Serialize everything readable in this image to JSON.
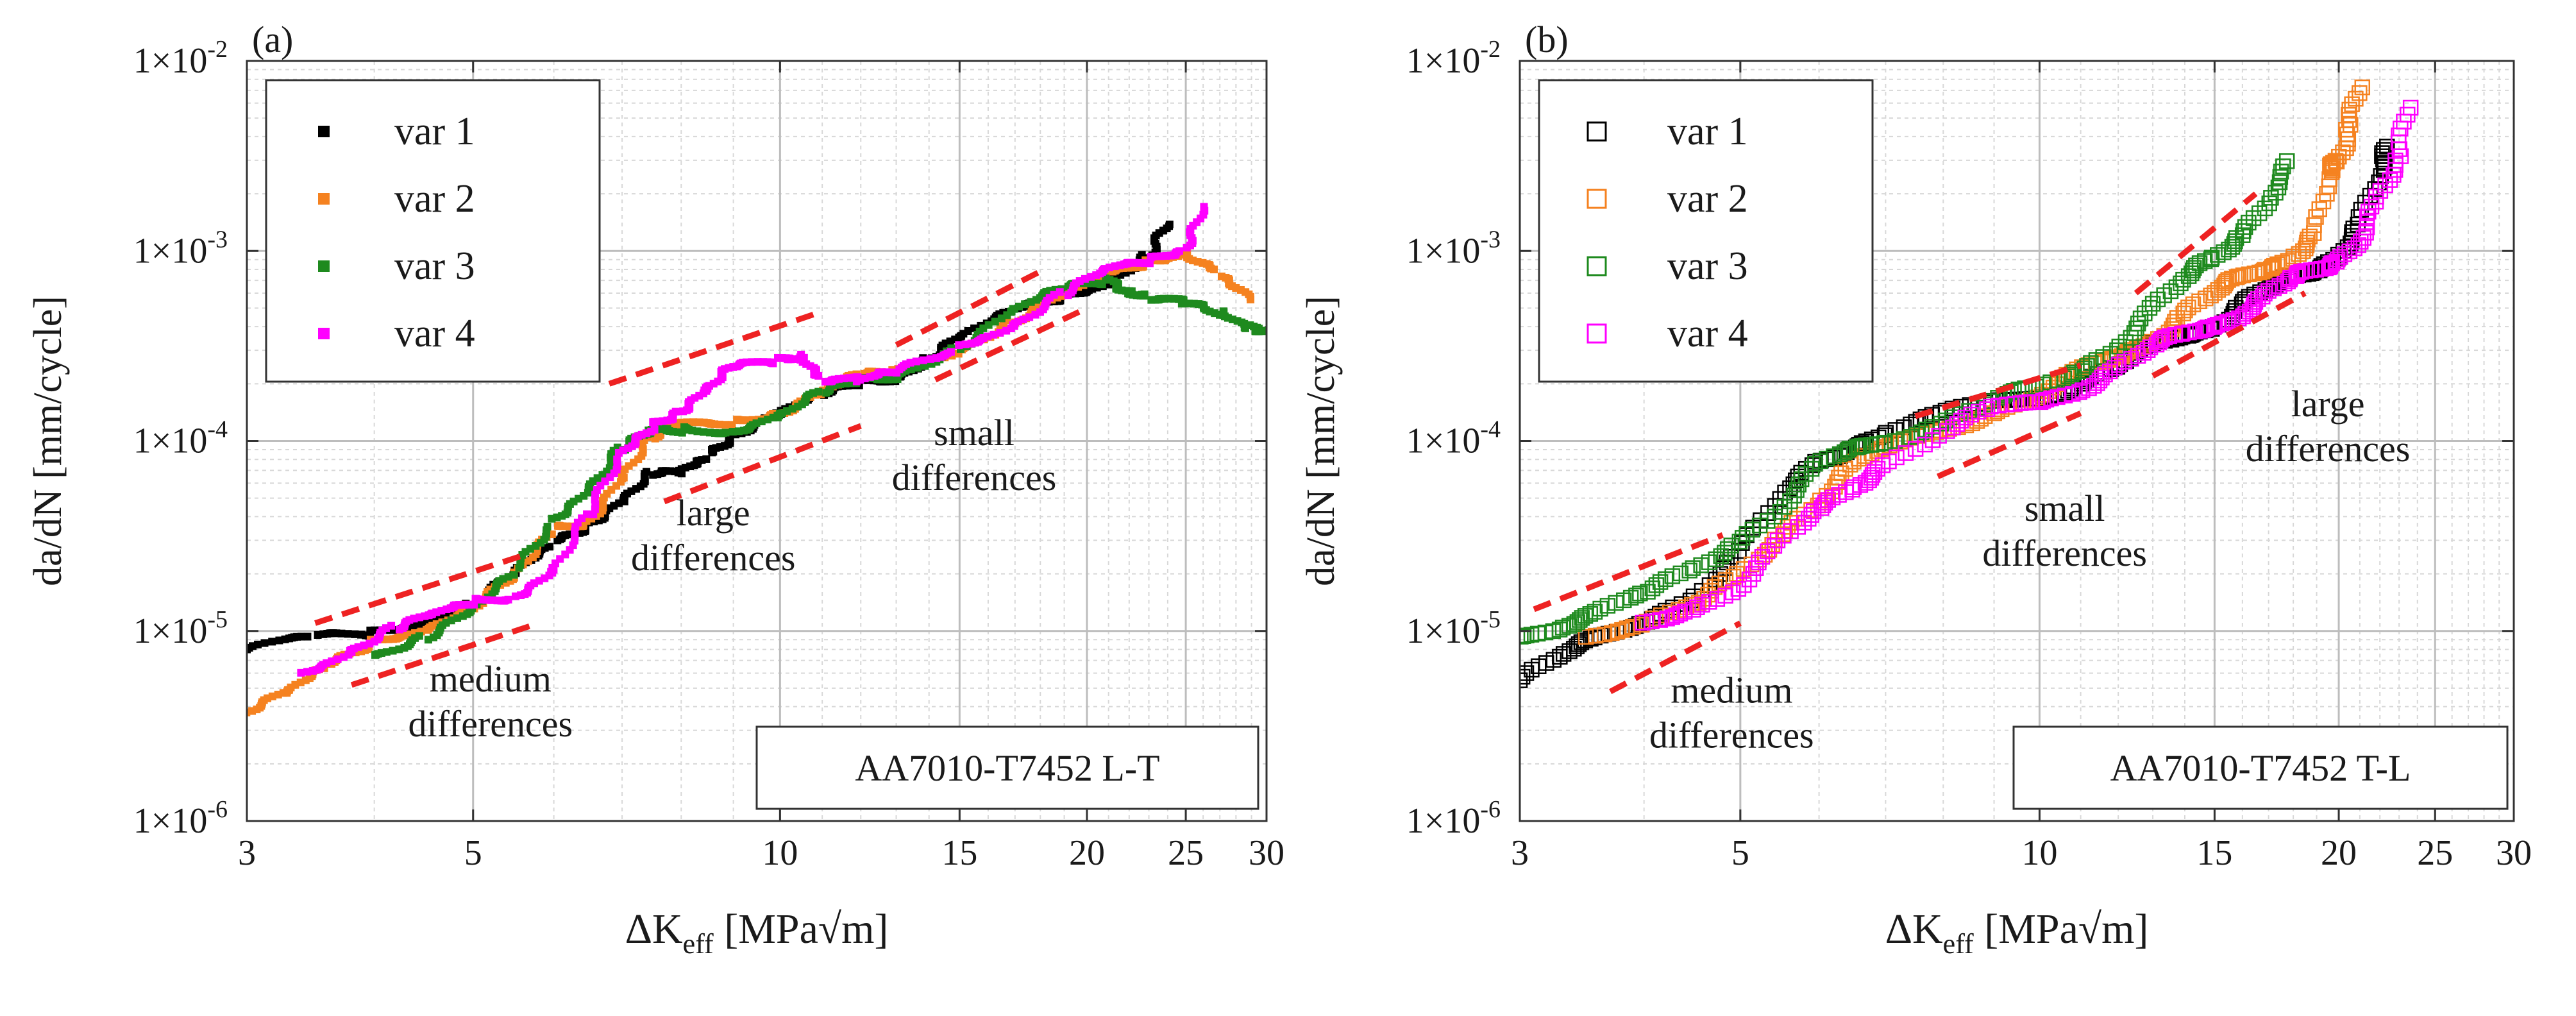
{
  "figure": {
    "panels": [
      {
        "panel_label": "(a)",
        "box_label": "AA7010-T7452 L-T",
        "y_axis_label": "da/dN [mm/cycle]",
        "x_axis_label_main": "ΔK",
        "x_axis_label_sub": "eff",
        "x_axis_label_unit": " [MPa√m]",
        "y_tick_prefix": "1×10",
        "annotations": [
          {
            "lines": [
              "medium",
              "differences"
            ],
            "x": 5.2,
            "y": 4.8e-06
          },
          {
            "lines": [
              "large",
              "differences"
            ],
            "x": 8.6,
            "y": 3.6e-05
          },
          {
            "lines": [
              "small",
              "differences"
            ],
            "x": 15.5,
            "y": 9.5e-05
          }
        ]
      },
      {
        "panel_label": "(b)",
        "box_label": "AA7010-T7452 T-L",
        "y_axis_label": "da/dN [mm/cycle]",
        "x_axis_label_main": "ΔK",
        "x_axis_label_sub": "eff",
        "x_axis_label_unit": " [MPa√m]",
        "y_tick_prefix": "1×10",
        "annotations": [
          {
            "lines": [
              "medium",
              "differences"
            ],
            "x": 4.9,
            "y": 4.2e-06
          },
          {
            "lines": [
              "small",
              "differences"
            ],
            "x": 10.6,
            "y": 3.8e-05
          },
          {
            "lines": [
              "large",
              "differences"
            ],
            "x": 19.5,
            "y": 0.000135
          }
        ]
      }
    ]
  },
  "chart_data": [
    {
      "type": "scatter",
      "title": "(a)",
      "xlabel": "ΔKeff [MPa√m]",
      "ylabel": "da/dN [mm/cycle]",
      "xscale": "log",
      "yscale": "log",
      "xlim": [
        3,
        30
      ],
      "ylim": [
        1e-06,
        0.01
      ],
      "x_ticks": [
        3,
        5,
        10,
        15,
        20,
        25,
        30
      ],
      "y_ticks": [
        -6,
        -5,
        -4,
        -3,
        -2
      ],
      "legend_position": "top-left",
      "marker": "filled-square",
      "grid": true,
      "annotation_box": "AA7010-T7452 L-T",
      "series": [
        {
          "name": "var 1",
          "color": "#000000",
          "points": [
            [
              3.0,
              8e-06
            ],
            [
              3.5,
              8.8e-06
            ],
            [
              4.0,
              9.8e-06
            ],
            [
              4.5,
              1.2e-05
            ],
            [
              5.0,
              1.4e-05
            ],
            [
              5.5,
              1.9e-05
            ],
            [
              6.0,
              2.8e-05
            ],
            [
              6.5,
              3.8e-05
            ],
            [
              7.0,
              5.2e-05
            ],
            [
              7.5,
              6.6e-05
            ],
            [
              8.0,
              6.3e-05
            ],
            [
              8.5,
              8.5e-05
            ],
            [
              9.0,
              0.000115
            ],
            [
              10.0,
              0.000145
            ],
            [
              11.0,
              0.000165
            ],
            [
              12.0,
              0.000195
            ],
            [
              13.0,
              0.000225
            ],
            [
              14.0,
              0.00029
            ],
            [
              15.0,
              0.00034
            ],
            [
              17.0,
              0.00046
            ],
            [
              19.0,
              0.00058
            ],
            [
              21.0,
              0.00073
            ],
            [
              23.0,
              0.00096
            ],
            [
              24.0,
              0.0013
            ]
          ]
        },
        {
          "name": "var 2",
          "color": "#f58220",
          "points": [
            [
              3.0,
              4e-06
            ],
            [
              3.3,
              4.6e-06
            ],
            [
              3.6,
              6.2e-06
            ],
            [
              4.0,
              9e-06
            ],
            [
              4.5,
              1.1e-05
            ],
            [
              5.0,
              1.35e-05
            ],
            [
              5.5,
              1.8e-05
            ],
            [
              6.0,
              3.4e-05
            ],
            [
              6.5,
              4e-05
            ],
            [
              7.0,
              6.8e-05
            ],
            [
              7.5,
              0.0001
            ],
            [
              8.0,
              0.000115
            ],
            [
              9.0,
              0.00013
            ],
            [
              10.0,
              0.00015
            ],
            [
              11.0,
              0.00018
            ],
            [
              12.0,
              0.00021
            ],
            [
              13.0,
              0.000225
            ],
            [
              15.0,
              0.00032
            ],
            [
              17.0,
              0.00045
            ],
            [
              19.0,
              0.00056
            ],
            [
              21.0,
              0.00072
            ],
            [
              23.0,
              0.0009
            ],
            [
              25.0,
              0.00105
            ],
            [
              27.0,
              0.00075
            ],
            [
              29.0,
              0.0005
            ]
          ]
        },
        {
          "name": "var 3",
          "color": "#1e8a1e",
          "points": [
            [
              4.0,
              8e-06
            ],
            [
              4.5,
              9.5e-06
            ],
            [
              5.0,
              1.2e-05
            ],
            [
              5.5,
              2e-05
            ],
            [
              6.0,
              4e-05
            ],
            [
              6.5,
              6e-05
            ],
            [
              7.0,
              9e-05
            ],
            [
              7.5,
              0.000105
            ],
            [
              8.0,
              0.000115
            ],
            [
              9.0,
              0.00012
            ],
            [
              10.0,
              0.00014
            ],
            [
              11.0,
              0.00017
            ],
            [
              12.0,
              0.0002
            ],
            [
              13.0,
              0.00023
            ],
            [
              15.0,
              0.00033
            ],
            [
              17.0,
              0.00048
            ],
            [
              19.0,
              0.0006
            ],
            [
              21.0,
              0.0007
            ],
            [
              22.0,
              0.00066
            ],
            [
              23.0,
              0.00058
            ],
            [
              25.0,
              0.0005
            ],
            [
              27.0,
              0.00045
            ],
            [
              29.0,
              0.00042
            ],
            [
              30.0,
              0.0004
            ]
          ]
        },
        {
          "name": "var 4",
          "color": "#ff00ff",
          "points": [
            [
              3.4,
              6e-06
            ],
            [
              3.8,
              8.5e-06
            ],
            [
              4.2,
              1.05e-05
            ],
            [
              4.6,
              1.15e-05
            ],
            [
              5.0,
              1.4e-05
            ],
            [
              5.5,
              1.6e-05
            ],
            [
              6.0,
              2.2e-05
            ],
            [
              6.5,
              4e-05
            ],
            [
              7.0,
              8e-05
            ],
            [
              7.5,
              0.000125
            ],
            [
              8.0,
              0.000155
            ],
            [
              8.5,
              0.00019
            ],
            [
              9.0,
              0.00023
            ],
            [
              10.0,
              0.00026
            ],
            [
              10.5,
              0.0003
            ],
            [
              11.0,
              0.00022
            ],
            [
              12.0,
              0.0002
            ],
            [
              13.0,
              0.00022
            ],
            [
              15.0,
              0.00032
            ],
            [
              17.0,
              0.00044
            ],
            [
              19.0,
              0.0006
            ],
            [
              21.0,
              0.00075
            ],
            [
              23.0,
              0.00088
            ],
            [
              25.0,
              0.0011
            ],
            [
              26.0,
              0.0018
            ]
          ]
        }
      ],
      "trend_lines_dashed_red": [
        [
          [
            3.5,
            1.1e-05
          ],
          [
            5.6,
            2.5e-05
          ]
        ],
        [
          [
            3.8,
            5.2e-06
          ],
          [
            5.8,
            1.1e-05
          ]
        ],
        [
          [
            6.8,
            0.0002
          ],
          [
            11.0,
            0.00048
          ]
        ],
        [
          [
            7.7,
            4.8e-05
          ],
          [
            12.0,
            0.00012
          ]
        ],
        [
          [
            13.0,
            0.00032
          ],
          [
            18.0,
            0.00078
          ]
        ],
        [
          [
            14.2,
            0.00021
          ],
          [
            20.0,
            0.0005
          ]
        ]
      ]
    },
    {
      "type": "scatter",
      "title": "(b)",
      "xlabel": "ΔKeff [MPa√m]",
      "ylabel": "da/dN [mm/cycle]",
      "xscale": "log",
      "yscale": "log",
      "xlim": [
        3,
        30
      ],
      "ylim": [
        1e-06,
        0.01
      ],
      "x_ticks": [
        3,
        5,
        10,
        15,
        20,
        25,
        30
      ],
      "y_ticks": [
        -6,
        -5,
        -4,
        -3,
        -2
      ],
      "legend_position": "top-left",
      "marker": "open-square",
      "grid": true,
      "annotation_box": "AA7010-T7452 T-L",
      "series": [
        {
          "name": "var 1",
          "color": "#000000",
          "points": [
            [
              3.0,
              5.5e-06
            ],
            [
              3.3,
              7e-06
            ],
            [
              3.6,
              9e-06
            ],
            [
              4.0,
              1.2e-05
            ],
            [
              4.5,
              1.6e-05
            ],
            [
              5.0,
              2.5e-05
            ],
            [
              5.5,
              5e-05
            ],
            [
              6.0,
              8e-05
            ],
            [
              6.5,
              0.0001
            ],
            [
              7.0,
              0.00011
            ],
            [
              8.0,
              0.00013
            ],
            [
              9.0,
              0.00016
            ],
            [
              10.0,
              0.00018
            ],
            [
              11.0,
              0.00021
            ],
            [
              12.0,
              0.00024
            ],
            [
              13.0,
              0.0003
            ],
            [
              14.0,
              0.00037
            ],
            [
              15.0,
              0.00043
            ],
            [
              16.0,
              0.00052
            ],
            [
              17.0,
              0.0006
            ],
            [
              18.0,
              0.00072
            ],
            [
              19.0,
              0.00085
            ],
            [
              20.0,
              0.001
            ],
            [
              21.0,
              0.0013
            ],
            [
              22.0,
              0.0025
            ],
            [
              22.5,
              0.0038
            ]
          ]
        },
        {
          "name": "var 2",
          "color": "#f58220",
          "points": [
            [
              3.5,
              1e-05
            ],
            [
              4.0,
              1.05e-05
            ],
            [
              4.5,
              1.3e-05
            ],
            [
              5.0,
              2e-05
            ],
            [
              5.5,
              3.5e-05
            ],
            [
              6.0,
              5e-05
            ],
            [
              6.5,
              7e-05
            ],
            [
              7.0,
              9e-05
            ],
            [
              8.0,
              0.00012
            ],
            [
              9.0,
              0.00015
            ],
            [
              10.0,
              0.00017
            ],
            [
              11.0,
              0.00022
            ],
            [
              12.0,
              0.00028
            ],
            [
              13.0,
              0.00036
            ],
            [
              14.0,
              0.00048
            ],
            [
              15.0,
              0.00058
            ],
            [
              16.0,
              0.0007
            ],
            [
              17.0,
              0.00085
            ],
            [
              18.0,
              0.001
            ],
            [
              19.0,
              0.0012
            ],
            [
              19.5,
              0.0024
            ],
            [
              20.0,
              0.003
            ],
            [
              20.5,
              0.005
            ],
            [
              21.0,
              0.008
            ]
          ]
        },
        {
          "name": "var 3",
          "color": "#1e8a1e",
          "points": [
            [
              3.0,
              1e-05
            ],
            [
              3.3,
              1.1e-05
            ],
            [
              3.6,
              1.2e-05
            ],
            [
              4.0,
              1.5e-05
            ],
            [
              4.5,
              2.2e-05
            ],
            [
              5.0,
              3.2e-05
            ],
            [
              5.5,
              4.5e-05
            ],
            [
              6.0,
              7e-05
            ],
            [
              6.5,
              9e-05
            ],
            [
              7.0,
              0.000105
            ],
            [
              8.0,
              0.00013
            ],
            [
              9.0,
              0.00016
            ],
            [
              10.0,
              0.00018
            ],
            [
              11.0,
              0.00024
            ],
            [
              12.0,
              0.00034
            ],
            [
              13.0,
              0.0005
            ],
            [
              14.0,
              0.00068
            ],
            [
              15.0,
              0.0009
            ],
            [
              16.0,
              0.0013
            ],
            [
              17.0,
              0.002
            ],
            [
              18.0,
              0.003
            ]
          ]
        },
        {
          "name": "var 4",
          "color": "#ff00ff",
          "points": [
            [
              4.0,
              1.1e-05
            ],
            [
              4.5,
              1.4e-05
            ],
            [
              5.0,
              1.8e-05
            ],
            [
              5.5,
              2.8e-05
            ],
            [
              6.0,
              4.2e-05
            ],
            [
              6.5,
              6e-05
            ],
            [
              7.0,
              8e-05
            ],
            [
              8.0,
              0.00011
            ],
            [
              9.0,
              0.00014
            ],
            [
              10.0,
              0.00016
            ],
            [
              11.0,
              0.0002
            ],
            [
              12.0,
              0.00025
            ],
            [
              13.0,
              0.0003
            ],
            [
              14.0,
              0.00035
            ],
            [
              15.0,
              0.00042
            ],
            [
              16.0,
              0.0005
            ],
            [
              17.0,
              0.00058
            ],
            [
              18.0,
              0.00068
            ],
            [
              19.0,
              0.0008
            ],
            [
              20.0,
              0.00095
            ],
            [
              21.0,
              0.0012
            ],
            [
              22.0,
              0.0018
            ],
            [
              23.0,
              0.003
            ],
            [
              23.5,
              0.0065
            ]
          ]
        }
      ],
      "trend_lines_dashed_red": [
        [
          [
            3.1,
            1.3e-05
          ],
          [
            4.8,
            3.2e-05
          ]
        ],
        [
          [
            3.7,
            4.8e-06
          ],
          [
            5.0,
            1.1e-05
          ]
        ],
        [
          [
            7.5,
            0.000135
          ],
          [
            11.0,
            0.00025
          ]
        ],
        [
          [
            7.9,
            6.5e-05
          ],
          [
            11.0,
            0.00014
          ]
        ],
        [
          [
            12.5,
            0.0006
          ],
          [
            16.5,
            0.002
          ]
        ],
        [
          [
            13.0,
            0.00022
          ],
          [
            18.5,
            0.0006
          ]
        ]
      ]
    }
  ]
}
